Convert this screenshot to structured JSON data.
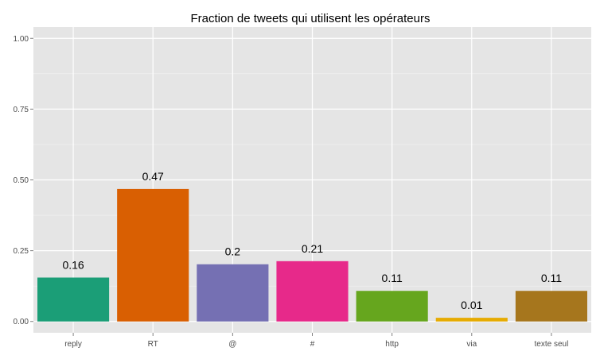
{
  "chart_data": {
    "type": "bar",
    "title": "Fraction de tweets qui utilisent les opérateurs",
    "xlabel": "",
    "ylabel": "",
    "categories": [
      "reply",
      "RT",
      "@",
      "#",
      "http",
      "via",
      "texte seul"
    ],
    "values": [
      0.155,
      0.468,
      0.202,
      0.213,
      0.108,
      0.013,
      0.108
    ],
    "value_labels": [
      "0.16",
      "0.47",
      "0.2",
      "0.21",
      "0.11",
      "0.01",
      "0.11"
    ],
    "colors": [
      "#1b9e77",
      "#d95f02",
      "#7570b3",
      "#e7298a",
      "#66a61e",
      "#e6ab02",
      "#a6761d"
    ],
    "ylim": [
      -0.04,
      1.04
    ],
    "yticks": [
      0,
      0.25,
      0.5,
      0.75,
      1
    ],
    "ytick_labels": [
      "0.00",
      "0.25",
      "0.50",
      "0.75",
      "1.00"
    ],
    "grid": true,
    "legend": "none"
  }
}
